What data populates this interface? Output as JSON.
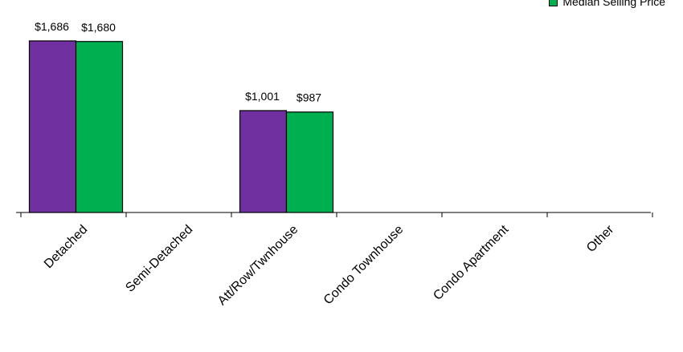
{
  "chart_data": {
    "type": "bar",
    "categories": [
      "Detached",
      "Semi-Detached",
      "Att/Row/Twnhouse",
      "Condo Townhouse",
      "Condo Apartment",
      "Other"
    ],
    "series": [
      {
        "name": "",
        "color": "#7030a0",
        "values": [
          1686,
          null,
          1001,
          null,
          null,
          null
        ],
        "labels": [
          "$1,686",
          "",
          "$1,001",
          "",
          "",
          ""
        ]
      },
      {
        "name": "Median Selling Price",
        "color": "#00b050",
        "values": [
          1680,
          null,
          987,
          null,
          null,
          null
        ],
        "labels": [
          "$1,680",
          "",
          "$987",
          "",
          "",
          ""
        ]
      }
    ],
    "ylim": [
      0,
      1686
    ],
    "grid": false,
    "legend_position": "top-right"
  }
}
